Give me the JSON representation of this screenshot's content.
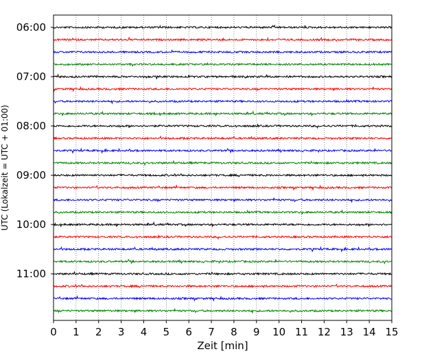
{
  "chart_data": {
    "type": "line",
    "title": "",
    "xlabel": "Zeit  [min]",
    "ylabel": "UTC (Lokalzeit = UTC + 01:00)",
    "xlim": [
      0,
      15
    ],
    "x_ticks": [
      "0",
      "1",
      "2",
      "3",
      "4",
      "5",
      "6",
      "7",
      "8",
      "9",
      "10",
      "11",
      "12",
      "13",
      "14",
      "15"
    ],
    "y_ticks": [
      "06:00",
      "07:00",
      "08:00",
      "09:00",
      "10:00",
      "11:00"
    ],
    "y_start": "06:00",
    "y_end": "11:45",
    "trace_interval": "15 min",
    "grid": "vertical dotted",
    "trace_colors": [
      "#000000",
      "#ff0000",
      "#0000ff",
      "#008000"
    ],
    "series": [
      {
        "start": "06:00",
        "color": "#000000"
      },
      {
        "start": "06:15",
        "color": "#ff0000"
      },
      {
        "start": "06:30",
        "color": "#0000ff"
      },
      {
        "start": "06:45",
        "color": "#008000"
      },
      {
        "start": "07:00",
        "color": "#000000"
      },
      {
        "start": "07:15",
        "color": "#ff0000"
      },
      {
        "start": "07:30",
        "color": "#0000ff"
      },
      {
        "start": "07:45",
        "color": "#008000"
      },
      {
        "start": "08:00",
        "color": "#000000"
      },
      {
        "start": "08:15",
        "color": "#ff0000"
      },
      {
        "start": "08:30",
        "color": "#0000ff"
      },
      {
        "start": "08:45",
        "color": "#008000"
      },
      {
        "start": "09:00",
        "color": "#000000"
      },
      {
        "start": "09:15",
        "color": "#ff0000"
      },
      {
        "start": "09:30",
        "color": "#0000ff"
      },
      {
        "start": "09:45",
        "color": "#008000"
      },
      {
        "start": "10:00",
        "color": "#000000"
      },
      {
        "start": "10:15",
        "color": "#ff0000"
      },
      {
        "start": "10:30",
        "color": "#0000ff"
      },
      {
        "start": "10:45",
        "color": "#008000"
      },
      {
        "start": "11:00",
        "color": "#000000"
      },
      {
        "start": "11:15",
        "color": "#ff0000"
      },
      {
        "start": "11:30",
        "color": "#0000ff"
      },
      {
        "start": "11:45",
        "color": "#008000"
      }
    ]
  }
}
